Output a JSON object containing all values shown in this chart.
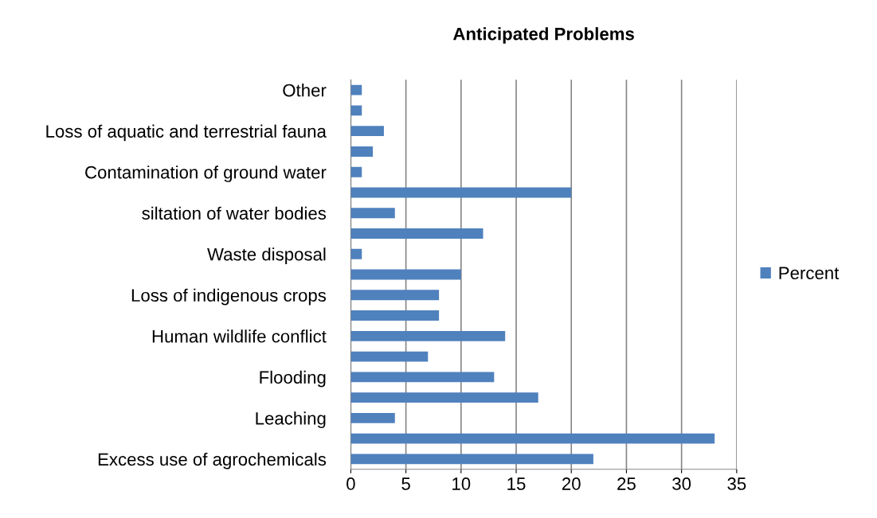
{
  "chart_data": {
    "type": "bar",
    "orientation": "horizontal",
    "title": "Anticipated Problems",
    "categories": [
      "Other",
      null,
      "Loss of aquatic and terrestrial fauna",
      null,
      "Contamination of ground water",
      null,
      "siltation of water bodies",
      null,
      "Waste disposal",
      null,
      "Loss of indigenous crops",
      null,
      "Human wildlife conflict",
      null,
      "Flooding",
      null,
      "Leaching",
      null,
      "Excess use of agrochemicals"
    ],
    "series": [
      {
        "name": "Percent",
        "color": "#4f81bd",
        "values": [
          1,
          1,
          3,
          2,
          1,
          20,
          4,
          12,
          1,
          10,
          8,
          8,
          14,
          7,
          13,
          17,
          4,
          33,
          22
        ]
      }
    ],
    "xlim": [
      0,
      35
    ],
    "xticks": [
      0,
      5,
      10,
      15,
      20,
      25,
      30,
      35
    ],
    "grid": "x",
    "legend": "right"
  }
}
